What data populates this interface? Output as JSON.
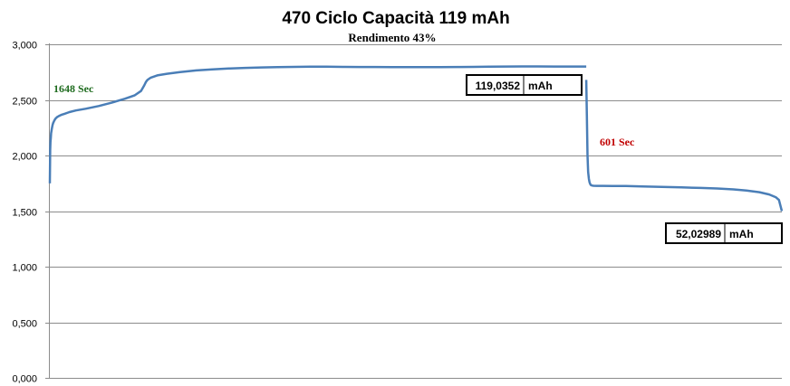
{
  "chart_data": {
    "type": "line",
    "title": "470 Ciclo Capacità 119 mAh",
    "subtitle": "Rendimento 43%",
    "xlabel": "",
    "ylabel": "",
    "ylim": [
      0,
      3
    ],
    "yticks": [
      0,
      0.5,
      1,
      1.5,
      2,
      2.5,
      3
    ],
    "ytick_labels": [
      "0,000",
      "0,500",
      "1,000",
      "1,500",
      "2,000",
      "2,500",
      "3,000"
    ],
    "grid": true,
    "legend": "none",
    "series": [
      {
        "color": "#4a7eb7",
        "segments": [
          {
            "x": [
              0,
              1,
              2,
              3,
              4,
              6,
              8,
              10,
              13,
              17,
              22,
              28,
              35,
              45,
              60,
              80,
              110,
              150,
              190,
              230,
              260,
              280,
              290,
              295,
              300,
              310,
              330,
              360,
              400,
              450,
              500,
              550,
              600,
              650,
              700,
              750,
              800,
              850,
              900,
              950,
              1000,
              1050,
              1100,
              1150,
              1200,
              1250,
              1300,
              1350,
              1400,
              1450,
              1500,
              1550,
              1600,
              1640,
              1648
            ],
            "y": [
              1.75,
              2.05,
              2.12,
              2.16,
              2.2,
              2.24,
              2.27,
              2.29,
              2.31,
              2.33,
              2.345,
              2.355,
              2.365,
              2.375,
              2.39,
              2.405,
              2.42,
              2.445,
              2.475,
              2.51,
              2.54,
              2.58,
              2.63,
              2.66,
              2.68,
              2.7,
              2.72,
              2.735,
              2.75,
              2.765,
              2.775,
              2.782,
              2.788,
              2.792,
              2.795,
              2.797,
              2.798,
              2.798,
              2.797,
              2.796,
              2.796,
              2.795,
              2.795,
              2.795,
              2.795,
              2.796,
              2.797,
              2.798,
              2.8,
              2.801,
              2.801,
              2.8,
              2.8,
              2.8,
              2.8
            ]
          },
          {
            "x": [
              1648,
              1650,
              1652,
              1654,
              1656,
              1658,
              1660,
              1662,
              1665,
              1670,
              1680,
              1700,
              1730,
              1770,
              1820,
              1880,
              1940,
              2000,
              2050,
              2100,
              2140,
              2180,
              2210,
              2230,
              2240,
              2249
            ],
            "y": [
              2.68,
              2.35,
              2.0,
              1.85,
              1.79,
              1.76,
              1.745,
              1.735,
              1.73,
              1.728,
              1.727,
              1.727,
              1.726,
              1.725,
              1.722,
              1.718,
              1.713,
              1.708,
              1.703,
              1.695,
              1.685,
              1.67,
              1.65,
              1.625,
              1.6,
              1.5
            ]
          }
        ]
      }
    ],
    "annotations": [
      {
        "text": "1648 Sec",
        "color": "#1e6b1e"
      },
      {
        "text": "601 Sec",
        "color": "#c00000"
      }
    ],
    "boxes": [
      {
        "value": "119,0352",
        "unit": "mAh"
      },
      {
        "value": "52,02989",
        "unit": "mAh"
      }
    ]
  }
}
